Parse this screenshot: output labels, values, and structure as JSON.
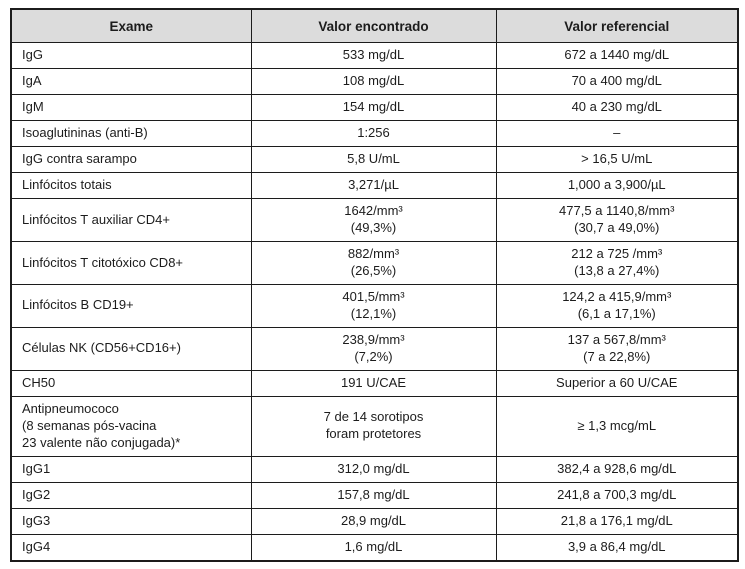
{
  "colors": {
    "header_background": "#dcdcdc",
    "border": "#1c1c1c",
    "text": "#1c1c1c",
    "page_background": "#ffffff"
  },
  "table": {
    "headers": [
      "Exame",
      "Valor encontrado",
      "Valor referencial"
    ],
    "rows": [
      [
        "IgG",
        "533 mg/dL",
        "672 a 1440 mg/dL"
      ],
      [
        "IgA",
        "108 mg/dL",
        "70 a 400 mg/dL"
      ],
      [
        "IgM",
        "154 mg/dL",
        "40 a 230 mg/dL"
      ],
      [
        "Isoaglutininas (anti-B)",
        "1:256",
        "–"
      ],
      [
        "IgG contra sarampo",
        "5,8 U/mL",
        "> 16,5 U/mL"
      ],
      [
        "Linfócitos totais",
        "3,271/µL",
        "1,000 a 3,900/µL"
      ],
      [
        "Linfócitos T auxiliar CD4+",
        "1642/mm³\n(49,3%)",
        "477,5 a 1140,8/mm³\n(30,7 a 49,0%)"
      ],
      [
        "Linfócitos T citotóxico CD8+",
        "882/mm³\n(26,5%)",
        "212 a 725 /mm³\n(13,8 a 27,4%)"
      ],
      [
        "Linfócitos B CD19+",
        "401,5/mm³\n(12,1%)",
        "124,2 a 415,9/mm³\n(6,1 a 17,1%)"
      ],
      [
        "Células NK (CD56+CD16+)",
        "238,9/mm³\n(7,2%)",
        "137 a 567,8/mm³\n(7 a 22,8%)"
      ],
      [
        "CH50",
        "191 U/CAE",
        "Superior a 60 U/CAE"
      ],
      [
        "Antipneumococo\n(8 semanas pós-vacina\n23 valente não conjugada)*",
        "7 de 14 sorotipos\nforam protetores",
        "≥ 1,3 mcg/mL"
      ],
      [
        "IgG1",
        "312,0 mg/dL",
        "382,4 a 928,6 mg/dL"
      ],
      [
        "IgG2",
        "157,8 mg/dL",
        "241,8 a 700,3 mg/dL"
      ],
      [
        "IgG3",
        "28,9 mg/dL",
        "21,8 a 176,1 mg/dL"
      ],
      [
        "IgG4",
        "1,6 mg/dL",
        "3,9 a 86,4 mg/dL"
      ]
    ]
  }
}
